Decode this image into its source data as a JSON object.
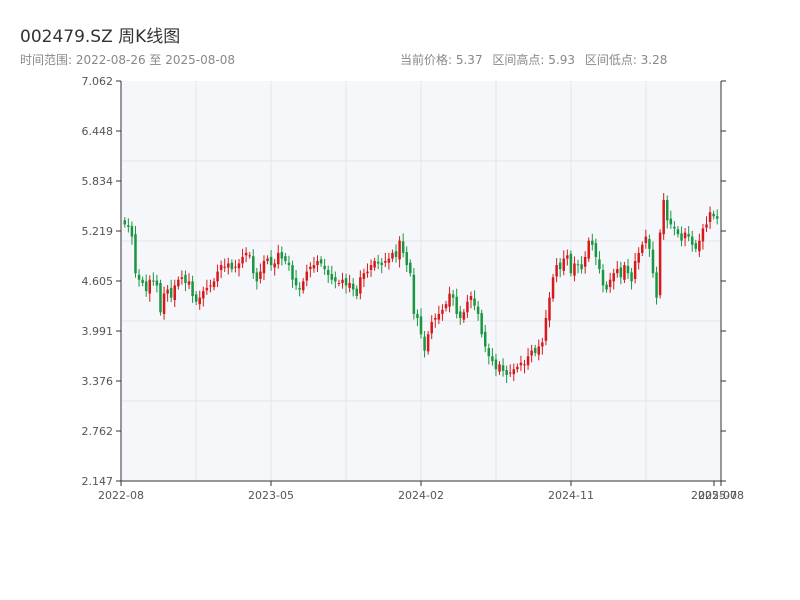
{
  "header": {
    "title": "002479.SZ 周K线图",
    "range_text": "时间范围: 2022-08-26 至 2025-08-08",
    "current_price": "当前价格: 5.37",
    "high": "区间高点: 5.93",
    "low": "区间低点: 3.28"
  },
  "colors": {
    "up": "#d7191c",
    "down": "#1a9641",
    "bg": "#f5f7fa",
    "grid": "#e3e6ea",
    "axis": "#333333"
  },
  "chart_data": {
    "type": "candlestick",
    "ylim": [
      2.147,
      7.062
    ],
    "yticks": [
      "2.147",
      "2.762",
      "3.376",
      "3.991",
      "4.605",
      "5.219",
      "5.834",
      "6.448",
      "7.062"
    ],
    "xticks": [
      "2022-08",
      "2023-05",
      "2024-02",
      "2024-11",
      "2025-07",
      "2025-08"
    ],
    "x_range": [
      "2022-08-26",
      "2025-08-08"
    ],
    "candles_close": [
      5.3,
      5.27,
      5.15,
      4.7,
      4.62,
      4.58,
      4.48,
      4.62,
      4.6,
      4.55,
      4.22,
      4.45,
      4.5,
      4.4,
      4.55,
      4.62,
      4.65,
      4.58,
      4.6,
      4.42,
      4.35,
      4.4,
      4.48,
      4.52,
      4.55,
      4.6,
      4.72,
      4.8,
      4.78,
      4.82,
      4.75,
      4.78,
      4.82,
      4.9,
      4.95,
      4.92,
      4.7,
      4.6,
      4.72,
      4.85,
      4.88,
      4.8,
      4.82,
      4.95,
      4.88,
      4.85,
      4.8,
      4.62,
      4.55,
      4.5,
      4.6,
      4.72,
      4.78,
      4.8,
      4.85,
      4.82,
      4.75,
      4.68,
      4.62,
      4.6,
      4.58,
      4.62,
      4.55,
      4.58,
      4.5,
      4.42,
      4.65,
      4.7,
      4.72,
      4.8,
      4.85,
      4.82,
      4.8,
      4.85,
      4.88,
      4.95,
      4.9,
      5.1,
      4.95,
      4.8,
      4.7,
      4.2,
      4.15,
      3.95,
      3.75,
      3.95,
      4.1,
      4.15,
      4.2,
      4.25,
      4.32,
      4.45,
      4.4,
      4.2,
      4.15,
      4.22,
      4.35,
      4.42,
      4.3,
      4.2,
      3.95,
      3.8,
      3.68,
      3.62,
      3.52,
      3.58,
      3.5,
      3.45,
      3.48,
      3.52,
      3.55,
      3.6,
      3.58,
      3.68,
      3.75,
      3.72,
      3.8,
      3.85,
      4.15,
      4.4,
      4.65,
      4.8,
      4.75,
      4.88,
      4.92,
      4.7,
      4.82,
      4.8,
      4.75,
      4.9,
      5.1,
      5.05,
      4.9,
      4.75,
      4.55,
      4.5,
      4.62,
      4.7,
      4.75,
      4.65,
      4.8,
      4.7,
      4.6,
      4.85,
      4.95,
      5.05,
      5.15,
      5.0,
      4.7,
      4.4,
      5.2,
      5.6,
      5.35,
      5.3,
      5.25,
      5.18,
      5.1,
      5.2,
      5.15,
      5.05,
      5.0,
      5.1,
      5.25,
      5.3,
      5.45,
      5.4,
      5.37
    ]
  }
}
